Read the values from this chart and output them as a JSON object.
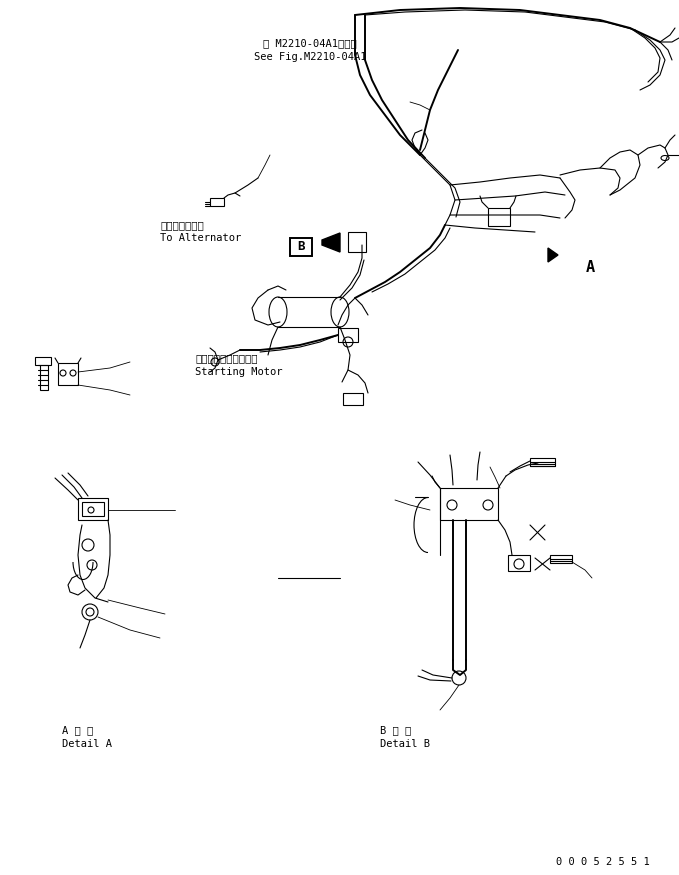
{
  "bg_color": "#ffffff",
  "line_color": "#000000",
  "lw": 0.8,
  "lw_thick": 1.4,
  "fig_width": 6.79,
  "fig_height": 8.75,
  "dpi": 100,
  "title_text1": "第 M2210-04A1図参照",
  "title_text2": "See Fig.M2210-04A1",
  "label_alternator_jp": "オルタネータへ",
  "label_alternator_en": "To Alternator",
  "label_motor_jp": "スターティングモータ",
  "label_motor_en": "Starting Motor",
  "label_A_jp": "A 詳 細",
  "label_A_en": "Detail A",
  "label_B_jp": "B 詳 細",
  "label_B_en": "Detail B",
  "label_A": "A",
  "label_B": "B",
  "part_number": "0 0 0 5 2 5 5 1",
  "fs": 7.5,
  "fs_label": 11
}
